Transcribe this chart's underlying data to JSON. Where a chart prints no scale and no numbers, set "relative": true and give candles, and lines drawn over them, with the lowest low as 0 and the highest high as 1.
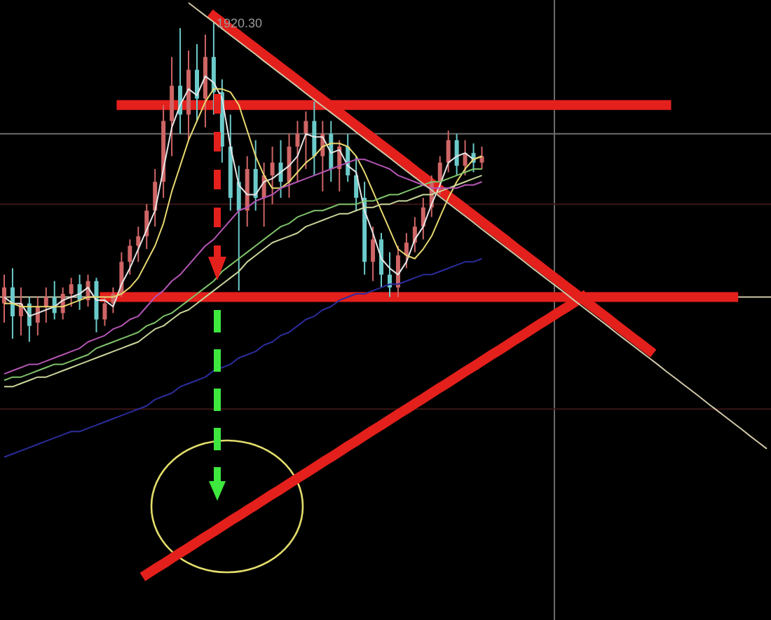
{
  "chart_data": {
    "type": "candlestick",
    "relative": true,
    "categories": [
      null,
      null,
      null,
      null,
      null,
      null,
      null,
      null,
      null,
      null,
      null,
      null,
      null,
      null,
      null,
      null,
      null,
      null,
      null,
      null,
      null,
      null,
      null,
      null,
      null,
      null,
      null,
      null,
      null,
      null,
      null,
      null,
      null,
      null,
      null,
      null,
      null,
      null,
      null,
      null,
      null,
      null,
      null,
      null,
      null,
      null,
      null,
      null,
      null,
      null,
      null,
      null,
      null,
      null,
      null,
      null,
      null,
      null,
      null,
      null,
      null,
      null,
      null,
      null,
      null,
      null,
      null,
      null,
      null,
      null,
      null,
      null,
      null,
      null,
      null,
      null,
      null,
      null,
      null,
      null,
      null,
      null,
      null,
      null,
      null,
      null,
      null,
      null,
      null,
      null,
      null,
      null
    ],
    "ohlc": [
      [
        0.12,
        0.21,
        0.06,
        0.17
      ],
      [
        0.17,
        0.23,
        0.01,
        0.08
      ],
      [
        0.08,
        0.17,
        0.02,
        0.12
      ],
      [
        0.12,
        0.14,
        0,
        0.05
      ],
      [
        0.06,
        0.14,
        0.02,
        0.11
      ],
      [
        0.11,
        0.17,
        0.06,
        0.14
      ],
      [
        0.14,
        0.19,
        0.07,
        0.09
      ],
      [
        0.09,
        0.17,
        0.07,
        0.15
      ],
      [
        0.15,
        0.2,
        0.11,
        0.18
      ],
      [
        0.18,
        0.21,
        0.1,
        0.13
      ],
      [
        0.13,
        0.21,
        0.11,
        0.19
      ],
      [
        0.19,
        0.2,
        0.03,
        0.07
      ],
      [
        0.07,
        0.14,
        0.05,
        0.12
      ],
      [
        0.12,
        0.17,
        0.09,
        0.15
      ],
      [
        0.15,
        0.28,
        0.14,
        0.25
      ],
      [
        0.25,
        0.32,
        0.21,
        0.3
      ],
      [
        0.3,
        0.36,
        0.25,
        0.33
      ],
      [
        0.33,
        0.43,
        0.29,
        0.41
      ],
      [
        0.41,
        0.54,
        0.36,
        0.5
      ],
      [
        0.5,
        0.74,
        0.45,
        0.69
      ],
      [
        0.69,
        0.89,
        0.58,
        0.8
      ],
      [
        0.8,
        0.98,
        0.65,
        0.71
      ],
      [
        0.71,
        0.91,
        0.63,
        0.85
      ],
      [
        0.85,
        0.93,
        0.69,
        0.76
      ],
      [
        0.76,
        0.96,
        0.67,
        0.89
      ],
      [
        0.89,
        1,
        0.71,
        0.78
      ],
      [
        0.78,
        0.82,
        0.56,
        0.61
      ],
      [
        0.61,
        0.71,
        0.41,
        0.45
      ],
      [
        0.5,
        0.55,
        0.16,
        0.41
      ],
      [
        0.41,
        0.58,
        0.36,
        0.54
      ],
      [
        0.54,
        0.63,
        0.41,
        0.45
      ],
      [
        0.45,
        0.56,
        0.36,
        0.52
      ],
      [
        0.52,
        0.61,
        0.43,
        0.56
      ],
      [
        0.56,
        0.63,
        0.45,
        0.5
      ],
      [
        0.5,
        0.65,
        0.45,
        0.61
      ],
      [
        0.61,
        0.69,
        0.5,
        0.65
      ],
      [
        0.65,
        0.72,
        0.54,
        0.69
      ],
      [
        0.69,
        0.75,
        0.52,
        0.58
      ],
      [
        0.58,
        0.69,
        0.47,
        0.65
      ],
      [
        0.65,
        0.69,
        0.5,
        0.54
      ],
      [
        0.54,
        0.63,
        0.47,
        0.61
      ],
      [
        0.61,
        0.65,
        0.5,
        0.52
      ],
      [
        0.52,
        0.58,
        0.41,
        0.45
      ],
      [
        0.45,
        0.5,
        0.21,
        0.25
      ],
      [
        0.25,
        0.36,
        0.19,
        0.32
      ],
      [
        0.32,
        0.34,
        0.17,
        0.21
      ],
      [
        0.21,
        0.28,
        0.14,
        0.17
      ],
      [
        0.17,
        0.3,
        0.14,
        0.27
      ],
      [
        0.27,
        0.34,
        0.23,
        0.31
      ],
      [
        0.31,
        0.39,
        0.28,
        0.36
      ],
      [
        0.36,
        0.45,
        0.32,
        0.42
      ],
      [
        0.42,
        0.52,
        0.39,
        0.5
      ],
      [
        0.5,
        0.58,
        0.46,
        0.56
      ],
      [
        0.56,
        0.66,
        0.53,
        0.63
      ],
      [
        0.63,
        0.65,
        0.52,
        0.55
      ],
      [
        0.55,
        0.63,
        0.52,
        0.59
      ],
      [
        0.59,
        0.62,
        0.53,
        0.56
      ],
      [
        0.56,
        0.61,
        0.54,
        0.58
      ],
      null,
      null,
      null,
      null,
      null,
      null,
      null,
      null,
      null,
      null,
      null,
      null,
      null,
      null,
      null,
      null,
      null,
      null,
      null,
      null,
      null,
      null,
      null,
      null,
      null,
      null,
      null,
      null,
      null,
      null,
      null,
      null,
      null,
      null
    ],
    "colors": [
      "#cf6565",
      "#6ccaca",
      "#cf6565",
      "#6ccaca",
      "#cf6565",
      "#cf6565",
      "#6ccaca",
      "#cf6565",
      "#cf6565",
      "#6ccaca",
      "#cf6565",
      "#6ccaca",
      "#cf6565",
      "#cf6565",
      "#cf6565",
      "#cf6565",
      "#cf6565",
      "#cf6565",
      "#cf6565",
      "#cf6565",
      "#cf6565",
      "#6ccaca",
      "#cf6565",
      "#6ccaca",
      "#cf6565",
      "#6ccaca",
      "#6ccaca",
      "#6ccaca",
      "#6ccaca",
      "#cf6565",
      "#6ccaca",
      "#cf6565",
      "#cf6565",
      "#6ccaca",
      "#cf6565",
      "#cf6565",
      "#cf6565",
      "#6ccaca",
      "#cf6565",
      "#6ccaca",
      "#cf6565",
      "#6ccaca",
      "#6ccaca",
      "#6ccaca",
      "#cf6565",
      "#6ccaca",
      "#6ccaca",
      "#cf6565",
      "#cf6565",
      "#cf6565",
      "#cf6565",
      "#cf6565",
      "#cf6565",
      "#cf6565",
      "#6ccaca",
      "#cf6565",
      "#6ccaca",
      "#cf6565",
      null,
      null,
      null,
      null,
      null,
      null,
      null,
      null,
      null,
      null,
      null,
      null,
      null,
      null,
      null,
      null,
      null,
      null,
      null,
      null,
      null,
      null,
      null,
      null,
      null,
      null,
      null,
      null,
      null,
      null,
      null,
      null,
      null,
      null
    ],
    "series": [
      {
        "type": "line",
        "color": "#e6e6e6",
        "values": [
          0.14,
          0.12,
          0.12,
          0.08,
          0.09,
          0.1,
          0.11,
          0.13,
          0.14,
          0.15,
          0.17,
          0.13,
          0.13,
          0.11,
          0.18,
          0.23,
          0.29,
          0.35,
          0.41,
          0.54,
          0.67,
          0.74,
          0.79,
          0.77,
          0.83,
          0.81,
          0.76,
          0.61,
          0.49,
          0.46,
          0.46,
          0.5,
          0.51,
          0.53,
          0.55,
          0.58,
          0.65,
          0.64,
          0.64,
          0.59,
          0.6,
          0.55,
          0.53,
          0.41,
          0.34,
          0.26,
          0.23,
          0.21,
          0.25,
          0.32,
          0.36,
          0.43,
          0.49,
          0.56,
          0.58,
          0.59,
          0.57,
          0.58,
          null,
          null,
          null,
          null,
          null,
          null,
          null,
          null,
          null,
          null,
          null,
          null,
          null,
          null,
          null,
          null,
          null,
          null,
          null,
          null,
          null,
          null,
          null,
          null,
          null,
          null,
          null,
          null,
          null,
          null,
          null,
          null,
          null,
          null
        ]
      },
      {
        "type": "line",
        "color": "#e8d870",
        "values": [
          0.12,
          0.12,
          0.11,
          0.11,
          0.11,
          0.11,
          0.11,
          0.11,
          0.12,
          0.13,
          0.14,
          0.14,
          0.14,
          0.14,
          0.15,
          0.17,
          0.2,
          0.25,
          0.3,
          0.37,
          0.47,
          0.55,
          0.63,
          0.69,
          0.75,
          0.79,
          0.79,
          0.78,
          0.74,
          0.66,
          0.58,
          0.52,
          0.48,
          0.48,
          0.5,
          0.53,
          0.56,
          0.58,
          0.61,
          0.62,
          0.62,
          0.61,
          0.58,
          0.53,
          0.47,
          0.41,
          0.35,
          0.29,
          0.27,
          0.26,
          0.29,
          0.33,
          0.39,
          0.45,
          0.5,
          0.54,
          0.57,
          0.58,
          null,
          null,
          null,
          null,
          null,
          null,
          null,
          null,
          null,
          null,
          null,
          null,
          null,
          null,
          null,
          null,
          null,
          null,
          null,
          null,
          null,
          null,
          null,
          null,
          null,
          null,
          null,
          null,
          null,
          null,
          null,
          null,
          null,
          null
        ]
      },
      {
        "type": "line",
        "color": "#7fc46a",
        "values": [
          -0.12,
          -0.11,
          -0.11,
          -0.1,
          -0.09,
          -0.08,
          -0.07,
          -0.07,
          -0.06,
          -0.05,
          -0.04,
          -0.02,
          -0.01,
          0,
          0.01,
          0.02,
          0.03,
          0.05,
          0.06,
          0.08,
          0.09,
          0.11,
          0.13,
          0.15,
          0.17,
          0.19,
          0.22,
          0.24,
          0.26,
          0.28,
          0.3,
          0.32,
          0.34,
          0.36,
          0.37,
          0.39,
          0.4,
          0.41,
          0.41,
          0.42,
          0.43,
          0.43,
          0.43,
          0.44,
          0.44,
          0.45,
          0.46,
          0.46,
          0.47,
          0.48,
          0.49,
          0.5,
          0.5,
          0.51,
          0.52,
          0.53,
          0.54,
          0.54,
          null,
          null,
          null,
          null,
          null,
          null,
          null,
          null,
          null,
          null,
          null,
          null,
          null,
          null,
          null,
          null,
          null,
          null,
          null,
          null,
          null,
          null,
          null,
          null,
          null,
          null,
          null,
          null,
          null,
          null,
          null,
          null,
          null,
          null
        ]
      },
      {
        "type": "line",
        "color": "#c9d79a",
        "values": [
          -0.14,
          -0.14,
          -0.13,
          -0.12,
          -0.11,
          -0.11,
          -0.1,
          -0.09,
          -0.08,
          -0.07,
          -0.06,
          -0.05,
          -0.04,
          -0.03,
          -0.02,
          -0.01,
          0,
          0.02,
          0.04,
          0.05,
          0.07,
          0.09,
          0.1,
          0.12,
          0.14,
          0.16,
          0.18,
          0.2,
          0.22,
          0.25,
          0.27,
          0.29,
          0.31,
          0.32,
          0.33,
          0.34,
          0.36,
          0.37,
          0.38,
          0.39,
          0.4,
          0.4,
          0.41,
          0.42,
          0.42,
          0.43,
          0.43,
          0.44,
          0.44,
          0.45,
          0.46,
          0.46,
          0.47,
          0.48,
          0.49,
          0.5,
          0.51,
          0.52,
          null,
          null,
          null,
          null,
          null,
          null,
          null,
          null,
          null,
          null,
          null,
          null,
          null,
          null,
          null,
          null,
          null,
          null,
          null,
          null,
          null,
          null,
          null,
          null,
          null,
          null,
          null,
          null,
          null,
          null,
          null,
          null,
          null,
          null
        ]
      },
      {
        "type": "line",
        "color": "#b455b4",
        "values": [
          -0.1,
          -0.09,
          -0.08,
          -0.07,
          -0.07,
          -0.06,
          -0.05,
          -0.04,
          -0.03,
          -0.02,
          0,
          0.01,
          0.02,
          0.04,
          0.05,
          0.07,
          0.08,
          0.11,
          0.14,
          0.16,
          0.19,
          0.21,
          0.24,
          0.27,
          0.3,
          0.32,
          0.35,
          0.38,
          0.41,
          0.42,
          0.44,
          0.45,
          0.46,
          0.48,
          0.49,
          0.5,
          0.51,
          0.52,
          0.53,
          0.54,
          0.55,
          0.56,
          0.57,
          0.57,
          0.56,
          0.55,
          0.54,
          0.52,
          0.51,
          0.5,
          0.49,
          0.48,
          0.48,
          0.48,
          0.48,
          0.49,
          0.49,
          0.5,
          null,
          null,
          null,
          null,
          null,
          null,
          null,
          null,
          null,
          null,
          null,
          null,
          null,
          null,
          null,
          null,
          null,
          null,
          null,
          null,
          null,
          null,
          null,
          null,
          null,
          null,
          null,
          null,
          null,
          null,
          null,
          null,
          null,
          null
        ]
      },
      {
        "type": "line",
        "color": "#2c2c9c",
        "values": [
          -0.36,
          -0.35,
          -0.34,
          -0.33,
          -0.32,
          -0.31,
          -0.3,
          -0.29,
          -0.28,
          -0.28,
          -0.27,
          -0.26,
          -0.25,
          -0.24,
          -0.23,
          -0.22,
          -0.21,
          -0.2,
          -0.18,
          -0.17,
          -0.16,
          -0.14,
          -0.13,
          -0.12,
          -0.11,
          -0.09,
          -0.08,
          -0.07,
          -0.05,
          -0.04,
          -0.03,
          -0.01,
          0,
          0.02,
          0.03,
          0.05,
          0.07,
          0.08,
          0.1,
          0.11,
          0.13,
          0.14,
          0.15,
          0.15,
          0.16,
          0.17,
          0.18,
          0.18,
          0.19,
          0.2,
          0.21,
          0.21,
          0.22,
          0.23,
          0.24,
          0.25,
          0.25,
          0.26,
          null,
          null,
          null,
          null,
          null,
          null,
          null,
          null,
          null,
          null,
          null,
          null,
          null,
          null,
          null,
          null,
          null,
          null,
          null,
          null,
          null,
          null,
          null,
          null,
          null,
          null,
          null,
          null,
          null,
          null,
          null,
          null,
          null,
          null
        ]
      },
      {
        "type": "line",
        "color": "#cfc7a8",
        "values": [
          null,
          null,
          null,
          null,
          null,
          null,
          null,
          null,
          null,
          null,
          null,
          null,
          null,
          null,
          null,
          null,
          null,
          null,
          null,
          null,
          null,
          null,
          1.059,
          1.039,
          1.019,
          0.999,
          0.978,
          0.958,
          0.938,
          0.918,
          0.898,
          0.877,
          0.857,
          0.837,
          0.817,
          0.797,
          0.776,
          0.756,
          0.736,
          0.716,
          0.696,
          0.676,
          0.655,
          0.635,
          0.615,
          0.595,
          0.575,
          0.554,
          0.534,
          0.514,
          0.494,
          0.474,
          0.453,
          0.433,
          0.413,
          0.393,
          0.373,
          0.352,
          0.332,
          0.312,
          0.292,
          0.272,
          0.252,
          0.231,
          0.211,
          0.191,
          0.171,
          0.151,
          0.13,
          0.11,
          0.09,
          0.07,
          0.05,
          0.029,
          0.009,
          -0.011,
          -0.031,
          -0.051,
          -0.071,
          -0.092,
          -0.112,
          -0.132,
          -0.152,
          -0.172,
          -0.193,
          -0.213,
          -0.233,
          -0.253,
          -0.273,
          -0.294,
          -0.314,
          -0.334
        ]
      },
      {
        "type": "line",
        "color": "#e4201c",
        "values": [
          null,
          null,
          null,
          null,
          null,
          null,
          null,
          null,
          null,
          null,
          null,
          null,
          null,
          null,
          0.74,
          0.74,
          0.74,
          0.74,
          0.74,
          0.74,
          0.74,
          0.74,
          0.74,
          0.74,
          0.74,
          0.74,
          0.74,
          0.74,
          0.74,
          0.74,
          0.74,
          0.74,
          0.74,
          0.74,
          0.74,
          0.74,
          0.74,
          0.74,
          0.74,
          0.74,
          0.74,
          0.74,
          0.74,
          0.74,
          0.74,
          0.74,
          0.74,
          0.74,
          0.74,
          0.74,
          0.74,
          0.74,
          0.74,
          0.74,
          0.74,
          0.74,
          0.74,
          0.74,
          0.74,
          0.74,
          0.74,
          0.74,
          0.74,
          0.74,
          0.74,
          0.74,
          0.74,
          0.74,
          0.74,
          0.74,
          0.74,
          0.74,
          0.74,
          0.74,
          0.74,
          0.74,
          0.74,
          0.74,
          0.74,
          0.74,
          null,
          null,
          null,
          null,
          null,
          null,
          null,
          null,
          null,
          null,
          null,
          null
        ]
      },
      {
        "type": "line",
        "color": "#e4201c",
        "values": [
          null,
          null,
          null,
          null,
          null,
          null,
          null,
          null,
          null,
          null,
          null,
          null,
          0.14,
          0.14,
          0.14,
          0.14,
          0.14,
          0.14,
          0.14,
          0.14,
          0.14,
          0.14,
          0.14,
          0.14,
          0.14,
          0.14,
          0.14,
          0.14,
          0.14,
          0.14,
          0.14,
          0.14,
          0.14,
          0.14,
          0.14,
          0.14,
          0.14,
          0.14,
          0.14,
          0.14,
          0.14,
          0.14,
          0.14,
          0.14,
          0.14,
          0.14,
          0.14,
          0.14,
          0.14,
          0.14,
          0.14,
          0.14,
          0.14,
          0.14,
          0.14,
          0.14,
          0.14,
          0.14,
          0.14,
          0.14,
          0.14,
          0.14,
          0.14,
          0.14,
          0.14,
          0.14,
          0.14,
          0.14,
          0.14,
          0.14,
          0.14,
          0.14,
          0.14,
          0.14,
          0.14,
          0.14,
          0.14,
          0.14,
          0.14,
          0.14,
          0.14,
          0.14,
          0.14,
          0.14,
          0.14,
          0.14,
          0.14,
          0.14,
          null,
          null,
          null,
          null
        ]
      },
      {
        "type": "line",
        "color": "#e4201c",
        "values": [
          null,
          null,
          null,
          null,
          null,
          null,
          null,
          null,
          null,
          null,
          null,
          null,
          null,
          null,
          null,
          null,
          null,
          null,
          null,
          null,
          null,
          null,
          null,
          null,
          null,
          1.017,
          0.997,
          0.977,
          0.957,
          0.937,
          0.917,
          0.897,
          0.877,
          0.857,
          0.837,
          0.817,
          0.797,
          0.776,
          0.756,
          0.736,
          0.716,
          0.696,
          0.676,
          0.656,
          0.636,
          0.616,
          0.596,
          0.576,
          0.556,
          0.535,
          0.515,
          0.495,
          0.475,
          0.455,
          0.435,
          0.415,
          0.395,
          0.375,
          0.355,
          0.335,
          0.315,
          0.294,
          0.274,
          0.254,
          0.234,
          0.214,
          0.194,
          0.174,
          0.154,
          0.134,
          0.114,
          0.094,
          0.074,
          0.053,
          0.033,
          0.013,
          -0.007,
          -0.027,
          null,
          null,
          null,
          null,
          null,
          null,
          null,
          null,
          null,
          null,
          null,
          null,
          null,
          null
        ]
      },
      {
        "type": "line",
        "color": "#e4201c",
        "values": [
          null,
          null,
          null,
          null,
          null,
          null,
          null,
          null,
          null,
          null,
          null,
          null,
          null,
          null,
          null,
          null,
          null,
          -0.726,
          -0.709,
          -0.693,
          -0.676,
          -0.659,
          -0.643,
          -0.626,
          -0.609,
          -0.593,
          -0.576,
          -0.559,
          -0.543,
          -0.526,
          -0.51,
          -0.493,
          -0.476,
          -0.46,
          -0.443,
          -0.426,
          -0.41,
          -0.393,
          -0.376,
          -0.36,
          -0.343,
          -0.326,
          -0.31,
          -0.293,
          -0.276,
          -0.26,
          -0.243,
          -0.226,
          -0.21,
          -0.193,
          -0.177,
          -0.16,
          -0.143,
          -0.127,
          -0.11,
          -0.093,
          -0.077,
          -0.06,
          -0.043,
          -0.027,
          -0.01,
          0.007,
          0.023,
          0.04,
          0.057,
          0.073,
          0.09,
          0.106,
          0.123,
          0.14,
          null,
          null,
          null,
          null,
          null,
          null,
          null,
          null,
          null,
          null,
          null,
          null,
          null,
          null,
          null,
          null,
          null,
          null,
          null,
          null,
          null,
          null
        ]
      }
    ],
    "ref_lines": [
      {
        "axis": "y",
        "value": 0.65,
        "color": "#6e6e6e"
      },
      {
        "axis": "y",
        "value": 0.43,
        "color": "#3c1616"
      },
      {
        "axis": "y",
        "value": -0.21,
        "color": "#3c1616"
      },
      {
        "axis": "y",
        "value": 0.14,
        "color": "#cfc7a8"
      }
    ],
    "annotations": [
      {
        "text": "1920.30",
        "y": 1
      }
    ]
  }
}
